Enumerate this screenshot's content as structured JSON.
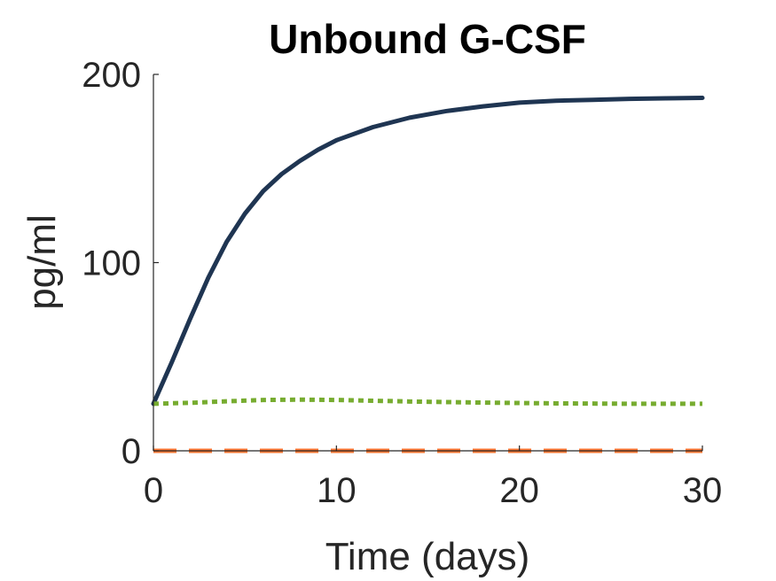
{
  "chart_data": {
    "type": "line",
    "title": "Unbound G-CSF",
    "xlabel": "Time (days)",
    "ylabel": "pg/ml",
    "xlim": [
      0,
      30
    ],
    "ylim": [
      0,
      200
    ],
    "xticks": [
      0,
      10,
      20,
      30
    ],
    "yticks": [
      0,
      100,
      200
    ],
    "grid": false,
    "legend": "none",
    "series": [
      {
        "color": "#1f3552",
        "style": "solid",
        "x": [
          0,
          1,
          2,
          3,
          4,
          5,
          6,
          7,
          8,
          9,
          10,
          12,
          14,
          16,
          18,
          20,
          22,
          24,
          26,
          28,
          30
        ],
        "y": [
          25,
          47,
          70,
          92,
          111,
          126,
          138,
          147,
          154,
          160,
          165,
          172,
          177,
          180.5,
          183,
          185,
          186,
          186.5,
          187,
          187.3,
          187.5
        ]
      },
      {
        "color": "#77ac30",
        "style": "dotted",
        "x": [
          0,
          2,
          4,
          6,
          8,
          10,
          12,
          14,
          16,
          18,
          20,
          22,
          24,
          26,
          28,
          30
        ],
        "y": [
          25,
          25.5,
          26.3,
          27,
          27.2,
          27,
          26.6,
          26.2,
          25.9,
          25.6,
          25.4,
          25.2,
          25.1,
          25,
          25,
          25
        ]
      },
      {
        "color": "#ff7733",
        "style": "dashed",
        "x": [
          0,
          30
        ],
        "y": [
          0,
          0
        ]
      }
    ]
  }
}
